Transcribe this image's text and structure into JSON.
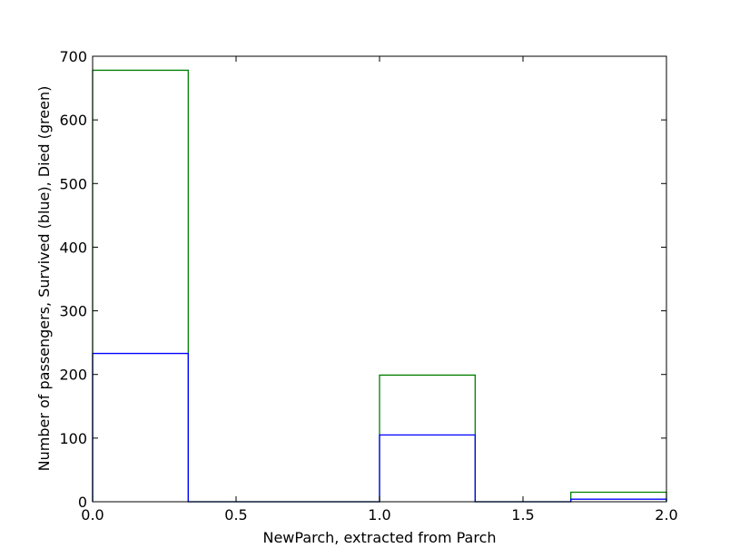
{
  "chart_data": {
    "type": "histogram",
    "title": "",
    "xlabel": "NewParch, extracted from Parch",
    "ylabel": "Number of passengers, Survived (blue), Died (green)",
    "xlim": [
      0.0,
      2.0
    ],
    "ylim": [
      0,
      700
    ],
    "x_ticks": [
      "0.0",
      "0.5",
      "1.0",
      "1.5",
      "2.0"
    ],
    "y_ticks": [
      "0",
      "100",
      "200",
      "300",
      "400",
      "500",
      "600",
      "700"
    ],
    "bin_edges": [
      0.0,
      0.3333,
      0.6667,
      1.0,
      1.3333,
      1.6667,
      2.0
    ],
    "series": [
      {
        "name": "Died",
        "color": "#008000",
        "values": [
          678,
          0,
          0,
          199,
          0,
          15
        ]
      },
      {
        "name": "Survived",
        "color": "#0000ff",
        "values": [
          233,
          0,
          0,
          105,
          0,
          4
        ]
      }
    ],
    "grid": false,
    "legend": "none"
  }
}
